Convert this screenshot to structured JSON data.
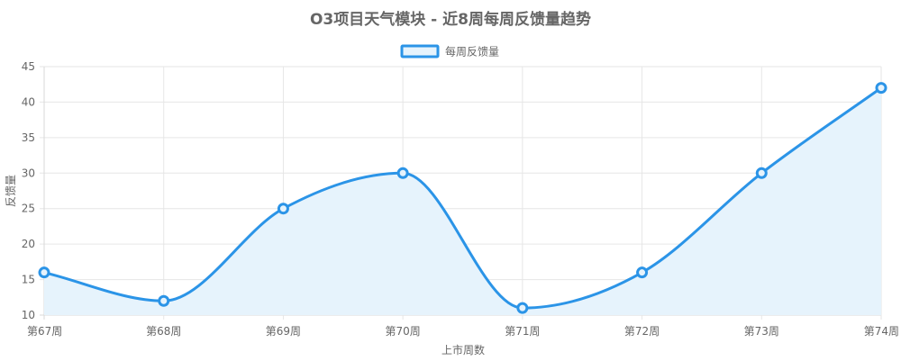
{
  "chart_data": {
    "type": "line",
    "title": "O3项目天气模块 - 近8周每周反馈量趋势",
    "xlabel": "上市周数",
    "ylabel": "反馈量",
    "categories": [
      "第67周",
      "第68周",
      "第69周",
      "第70周",
      "第71周",
      "第72周",
      "第73周",
      "第74周"
    ],
    "series": [
      {
        "name": "每周反馈量",
        "values": [
          16,
          12,
          25,
          30,
          11,
          16,
          30,
          42
        ],
        "color": "#2b94e7",
        "fill": "#e6f3fc"
      }
    ],
    "ylim": [
      10,
      45
    ],
    "yticks": [
      "10",
      "15",
      "20",
      "25",
      "30",
      "35",
      "40",
      "45"
    ],
    "grid": true,
    "legend_position": "top-center"
  }
}
